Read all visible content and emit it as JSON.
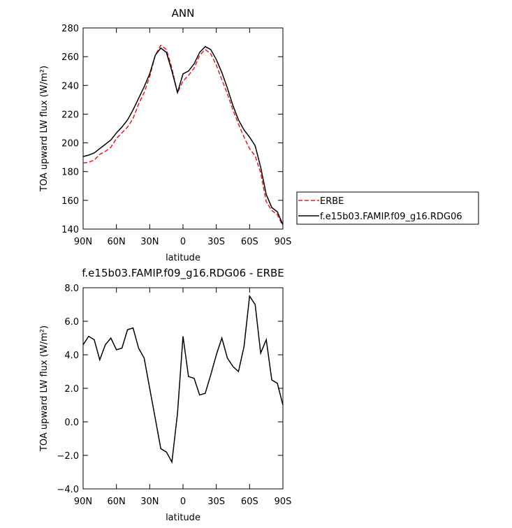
{
  "chart_data": [
    {
      "type": "line",
      "title": "ANN",
      "y_label": "TOA upward LW flux (W/m²)",
      "x_label": "latitude",
      "x": [
        90,
        85,
        80,
        75,
        70,
        65,
        60,
        55,
        50,
        45,
        40,
        35,
        30,
        25,
        20,
        15,
        10,
        5,
        0,
        -5,
        -10,
        -15,
        -20,
        -25,
        -30,
        -35,
        -40,
        -45,
        -50,
        -55,
        -60,
        -65,
        -70,
        -75,
        -80,
        -85,
        -90
      ],
      "xlim": [
        90,
        -90
      ],
      "xticks": [
        {
          "value": 90,
          "label": "90N"
        },
        {
          "value": 60,
          "label": "60N"
        },
        {
          "value": 30,
          "label": "30N"
        },
        0,
        {
          "value": -30,
          "label": "30S"
        },
        {
          "value": -60,
          "label": "60S"
        },
        {
          "value": -90,
          "label": "90S"
        }
      ],
      "ylim": [
        140,
        280
      ],
      "yticks": [
        140,
        160,
        180,
        200,
        220,
        240,
        260,
        280
      ],
      "legend": "right",
      "series": [
        {
          "name": "ERBE",
          "color": "#e8191c",
          "dashed": true,
          "values": [
            186,
            186.5,
            188,
            192,
            194,
            197,
            203,
            207,
            211,
            217,
            227,
            235,
            246,
            261,
            268,
            265,
            252,
            235,
            243,
            247,
            252,
            261,
            265,
            262,
            254,
            244,
            234,
            223,
            213,
            204,
            196,
            191,
            179,
            159,
            153,
            150,
            142
          ]
        },
        {
          "name": "f.e15b03.FAMIP.f09_g16.RDG06",
          "color": "#000000",
          "dashed": false,
          "values": [
            190.5,
            191.5,
            193,
            196,
            199,
            202,
            207,
            211,
            216,
            223,
            231,
            239,
            248,
            261,
            266,
            263,
            250,
            235,
            248,
            250,
            255,
            263,
            267,
            265,
            258,
            249,
            238,
            226,
            216,
            209,
            204,
            198,
            183,
            164,
            155,
            152,
            143
          ]
        }
      ]
    },
    {
      "type": "line",
      "title": "f.e15b03.FAMIP.f09_g16.RDG06 - ERBE",
      "y_label": "TOA upward LW flux (W/m²)",
      "x_label": "latitude",
      "x": [
        90,
        85,
        80,
        75,
        70,
        65,
        60,
        55,
        50,
        45,
        40,
        35,
        30,
        25,
        20,
        15,
        10,
        5,
        0,
        -5,
        -10,
        -15,
        -20,
        -25,
        -30,
        -35,
        -40,
        -45,
        -50,
        -55,
        -60,
        -65,
        -70,
        -75,
        -80,
        -85,
        -90
      ],
      "xlim": [
        90,
        -90
      ],
      "xticks": [
        {
          "value": 90,
          "label": "90N"
        },
        {
          "value": 60,
          "label": "60N"
        },
        {
          "value": 30,
          "label": "30N"
        },
        0,
        {
          "value": -30,
          "label": "30S"
        },
        {
          "value": -60,
          "label": "60S"
        },
        {
          "value": -90,
          "label": "90S"
        }
      ],
      "ylim": [
        -4,
        8
      ],
      "yticks": [
        {
          "value": -4,
          "label": "−4.0"
        },
        {
          "value": -2,
          "label": "−2.0"
        },
        {
          "value": 0,
          "label": "0.0"
        },
        {
          "value": 2,
          "label": "2.0"
        },
        {
          "value": 4,
          "label": "4.0"
        },
        {
          "value": 6,
          "label": "6.0"
        },
        {
          "value": 8,
          "label": "8.0"
        }
      ],
      "series": [
        {
          "color": "#000000",
          "dashed": false,
          "values": [
            4.6,
            5.1,
            4.9,
            3.7,
            4.6,
            5.0,
            4.3,
            4.4,
            5.5,
            5.6,
            4.4,
            3.8,
            2.0,
            0.2,
            -1.6,
            -1.8,
            -2.4,
            0.5,
            5.1,
            2.7,
            2.6,
            1.6,
            1.7,
            2.8,
            4.0,
            5.0,
            3.8,
            3.3,
            3.0,
            4.5,
            7.5,
            7.0,
            4.1,
            4.9,
            2.5,
            2.3,
            1.0
          ]
        }
      ]
    }
  ]
}
